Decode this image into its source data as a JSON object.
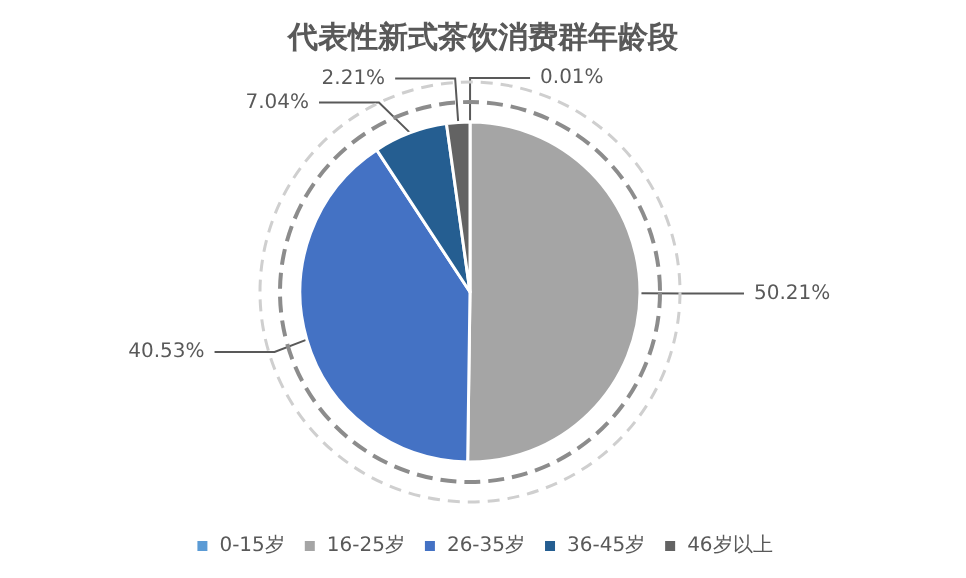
{
  "chart_data": {
    "type": "pie",
    "title": "代表性新式茶饮消费群年龄段",
    "categories": [
      "0-15岁",
      "16-25岁",
      "26-35岁",
      "36-45岁",
      "46岁以上"
    ],
    "values": [
      0.01,
      50.21,
      40.53,
      7.04,
      2.21
    ],
    "value_labels": [
      "0.01%",
      "50.21%",
      "40.53%",
      "7.04%",
      "2.21%"
    ],
    "colors": [
      "#5b9bd5",
      "#a5a5a5",
      "#4472c4",
      "#255e91",
      "#636363"
    ],
    "legend": "bottom"
  }
}
